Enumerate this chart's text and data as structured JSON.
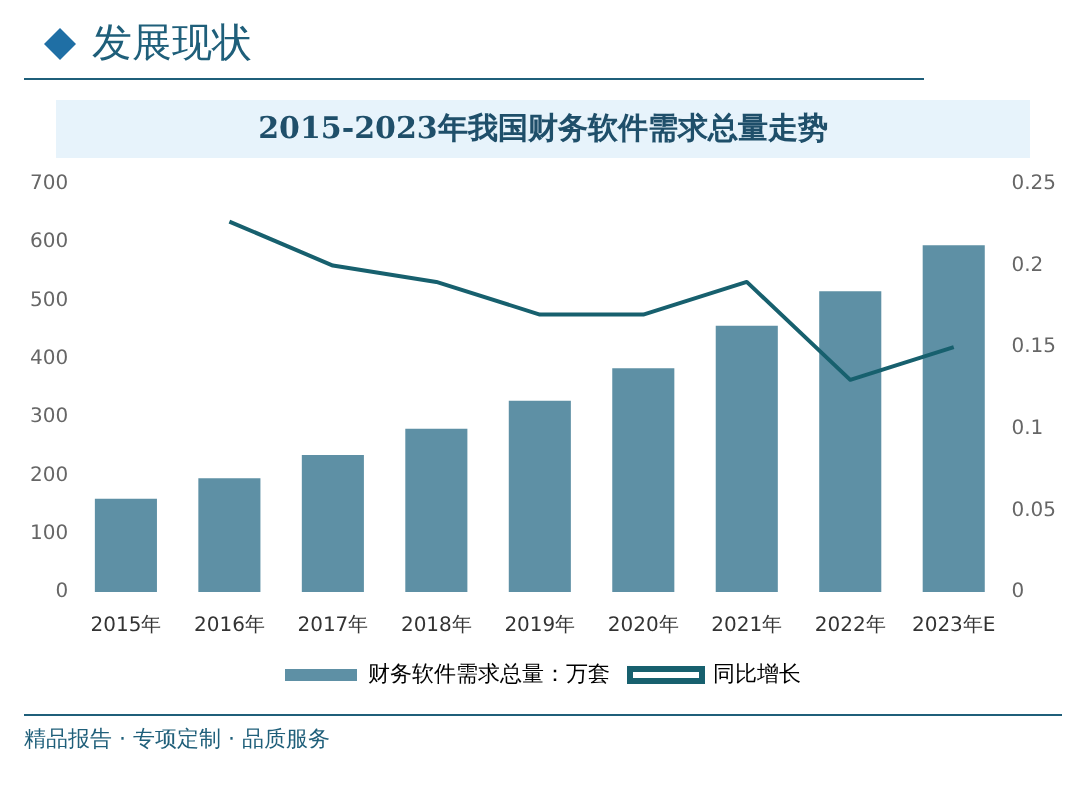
{
  "chart_data": {
    "type": "bar",
    "title": "2015-2023年我国财务软件需求总量走势",
    "subtitle": "发展现状",
    "categories": [
      "2015年",
      "2016年",
      "2017年",
      "2018年",
      "2019年",
      "2020年",
      "2021年",
      "2022年",
      "2023年E"
    ],
    "series": [
      {
        "name": "财务软件需求总量：万套",
        "color": "#5e90a5",
        "values": [
          160,
          195,
          235,
          280,
          328,
          384,
          457,
          516,
          595
        ]
      },
      {
        "name": "同比增长",
        "type": "line",
        "axis": "y2",
        "color": "#17606e",
        "values": [
          null,
          0.227,
          0.2,
          0.19,
          0.17,
          0.17,
          0.19,
          0.13,
          0.15
        ]
      }
    ],
    "ylim": [
      0,
      700
    ],
    "yticks": [
      0,
      100,
      200,
      300,
      400,
      500,
      600,
      700
    ],
    "y2lim": [
      0,
      0.25
    ],
    "y2ticks": [
      0,
      0.05,
      0.1,
      0.15,
      0.2,
      0.25
    ],
    "grid": false,
    "legend": "bottom",
    "marker": "none",
    "line_style": "solid",
    "annotations": [
      "精品报告 · 专项定制 · 品质服务"
    ]
  }
}
